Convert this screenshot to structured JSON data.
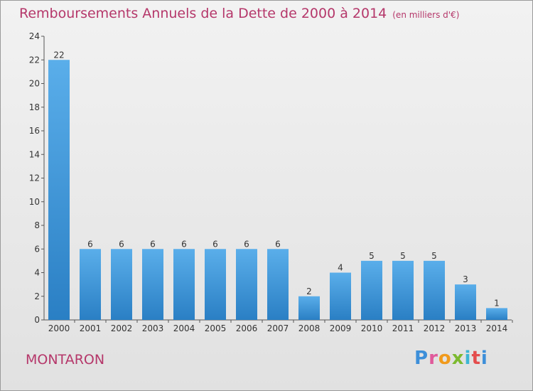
{
  "header": {
    "title": "Remboursements Annuels de la Dette de 2000 à 2014",
    "subtitle": "(en milliers d'€)"
  },
  "footer": {
    "commune": "MONTARON",
    "brand": "Proxiti"
  },
  "colors": {
    "title": "#b5376a",
    "bar_light": "#5aaeea",
    "bar_dark": "#2a7fc4",
    "axis": "#555555"
  },
  "chart_data": {
    "type": "bar",
    "title": "Remboursements Annuels de la Dette de 2000 à 2014",
    "subtitle": "(en milliers d'€)",
    "xlabel": "",
    "ylabel": "",
    "categories": [
      "2000",
      "2001",
      "2002",
      "2003",
      "2004",
      "2005",
      "2006",
      "2007",
      "2008",
      "2009",
      "2010",
      "2011",
      "2012",
      "2013",
      "2014"
    ],
    "values": [
      22,
      6,
      6,
      6,
      6,
      6,
      6,
      6,
      2,
      4,
      5,
      5,
      5,
      3,
      1
    ],
    "ylim": [
      0,
      24
    ],
    "yticks": [
      0,
      2,
      4,
      6,
      8,
      10,
      12,
      14,
      16,
      18,
      20,
      22,
      24
    ],
    "grid": false,
    "legend": "none"
  }
}
